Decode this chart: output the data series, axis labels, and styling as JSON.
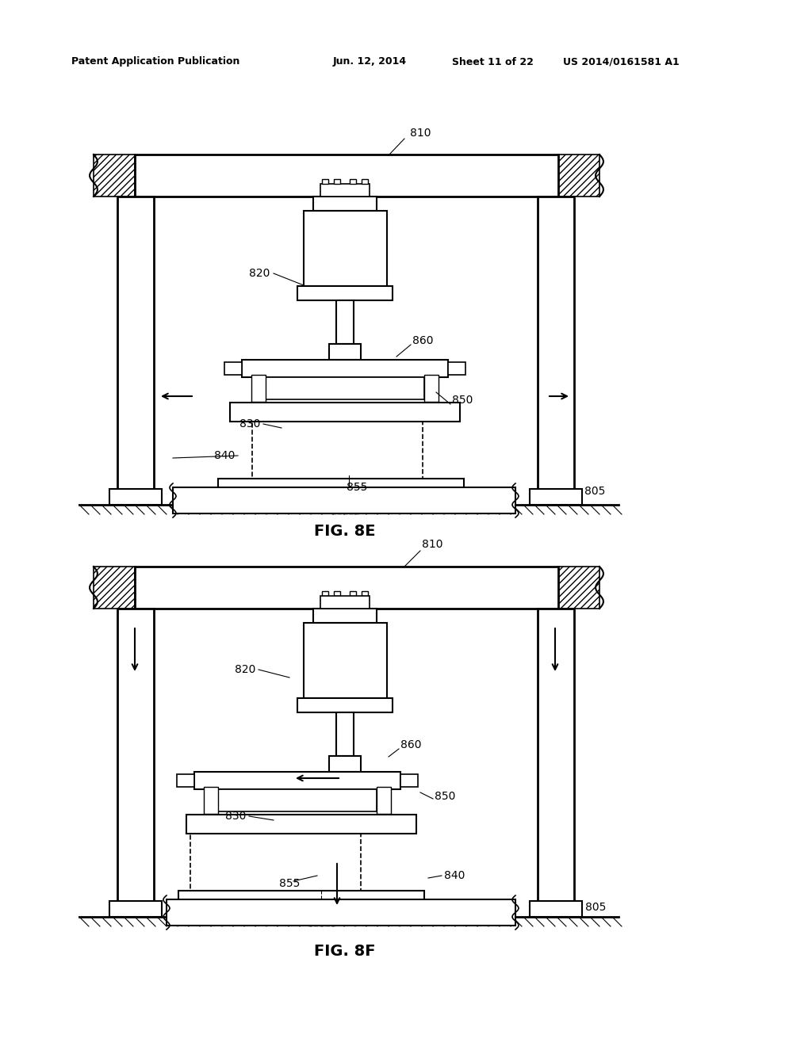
{
  "background_color": "#ffffff",
  "header_line1": "Patent Application Publication",
  "header_line2": "Jun. 12, 2014",
  "header_line3": "Sheet 11 of 22",
  "header_line4": "US 2014/0161581 A1",
  "line_color": "#000000",
  "fig8e_caption": "FIG. 8E",
  "fig8f_caption": "FIG. 8F"
}
